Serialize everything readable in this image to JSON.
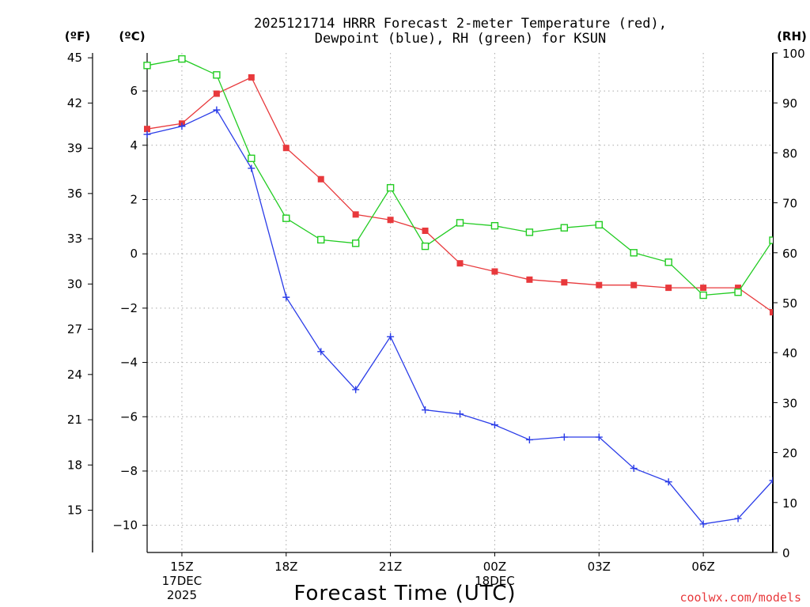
{
  "title_line1": "2025121714 HRRR Forecast 2-meter Temperature (red),",
  "title_line2": "Dewpoint (blue), RH (green) for KSUN",
  "units": {
    "fahrenheit": "(ºF)",
    "celsius": "(ºC)",
    "rh": "(RH)"
  },
  "x_axis_label": "Forecast Time (UTC)",
  "credit": "coolwx.com/models",
  "colors": {
    "temperature": "#e8393c",
    "dewpoint": "#2a3ce8",
    "rh": "#22cc22",
    "grid": "#a8a8a8"
  },
  "chart_data": {
    "type": "line",
    "title": "2025121714 HRRR Forecast 2-meter Temperature (red), Dewpoint (blue), RH (green) for KSUN",
    "xlabel": "Forecast Time (UTC)",
    "x_hours": [
      14,
      15,
      16,
      17,
      18,
      19,
      20,
      21,
      22,
      23,
      24,
      25,
      26,
      27,
      28,
      29,
      30,
      31,
      32
    ],
    "x_ticks": [
      {
        "hour": 15,
        "lines": [
          "15Z",
          "17DEC",
          "2025"
        ]
      },
      {
        "hour": 18,
        "lines": [
          "18Z"
        ]
      },
      {
        "hour": 21,
        "lines": [
          "21Z"
        ]
      },
      {
        "hour": 24,
        "lines": [
          "00Z",
          "18DEC"
        ]
      },
      {
        "hour": 27,
        "lines": [
          "03Z"
        ]
      },
      {
        "hour": 30,
        "lines": [
          "06Z"
        ]
      }
    ],
    "x_range": [
      14,
      32
    ],
    "celsius_axis": {
      "range": [
        -11,
        7.4
      ],
      "ticks": [
        6,
        4,
        2,
        0,
        -2,
        -4,
        -6,
        -8,
        -10
      ],
      "tick_labels": [
        "6",
        "4",
        "2",
        "0",
        "−2",
        "−4",
        "−6",
        "−8",
        "−10"
      ]
    },
    "fahrenheit_axis": {
      "ticks": [
        45,
        42,
        39,
        36,
        33,
        30,
        27,
        24,
        21,
        18,
        15
      ],
      "tick_labels": [
        "45",
        "42",
        "39",
        "36",
        "33",
        "30",
        "27",
        "24",
        "21",
        "18",
        "15"
      ]
    },
    "rh_axis": {
      "range": [
        0,
        100
      ],
      "ticks": [
        0,
        10,
        20,
        30,
        40,
        50,
        60,
        70,
        80,
        90,
        100
      ],
      "tick_labels": [
        "0",
        "10",
        "20",
        "30",
        "40",
        "50",
        "60",
        "70",
        "80",
        "90",
        "100"
      ]
    },
    "series": [
      {
        "name": "2-meter Temperature",
        "unit": "C",
        "axis": "celsius",
        "color": "#e8393c",
        "marker": "filled-square",
        "values": [
          4.6,
          4.8,
          5.9,
          6.5,
          3.9,
          2.75,
          1.45,
          1.25,
          0.85,
          -0.35,
          -0.65,
          -0.95,
          -1.05,
          -1.15,
          -1.15,
          -1.25,
          -1.25,
          -1.25,
          -2.15
        ]
      },
      {
        "name": "Dewpoint",
        "unit": "C",
        "axis": "celsius",
        "color": "#2a3ce8",
        "marker": "plus",
        "values": [
          4.4,
          4.7,
          5.3,
          3.15,
          -1.6,
          -3.6,
          -5.0,
          -3.05,
          -5.75,
          -5.9,
          -6.3,
          -6.85,
          -6.75,
          -6.75,
          -7.9,
          -8.4,
          -9.95,
          -9.75,
          -8.35
        ]
      },
      {
        "name": "Relative Humidity",
        "unit": "%",
        "axis": "rh",
        "color": "#22cc22",
        "marker": "open-square",
        "values": [
          97.5,
          98.8,
          95.6,
          78.9,
          66.9,
          62.6,
          61.9,
          73.0,
          61.3,
          66.0,
          65.4,
          64.1,
          65.0,
          65.6,
          60.0,
          58.1,
          51.5,
          52.1,
          62.5
        ]
      }
    ]
  }
}
